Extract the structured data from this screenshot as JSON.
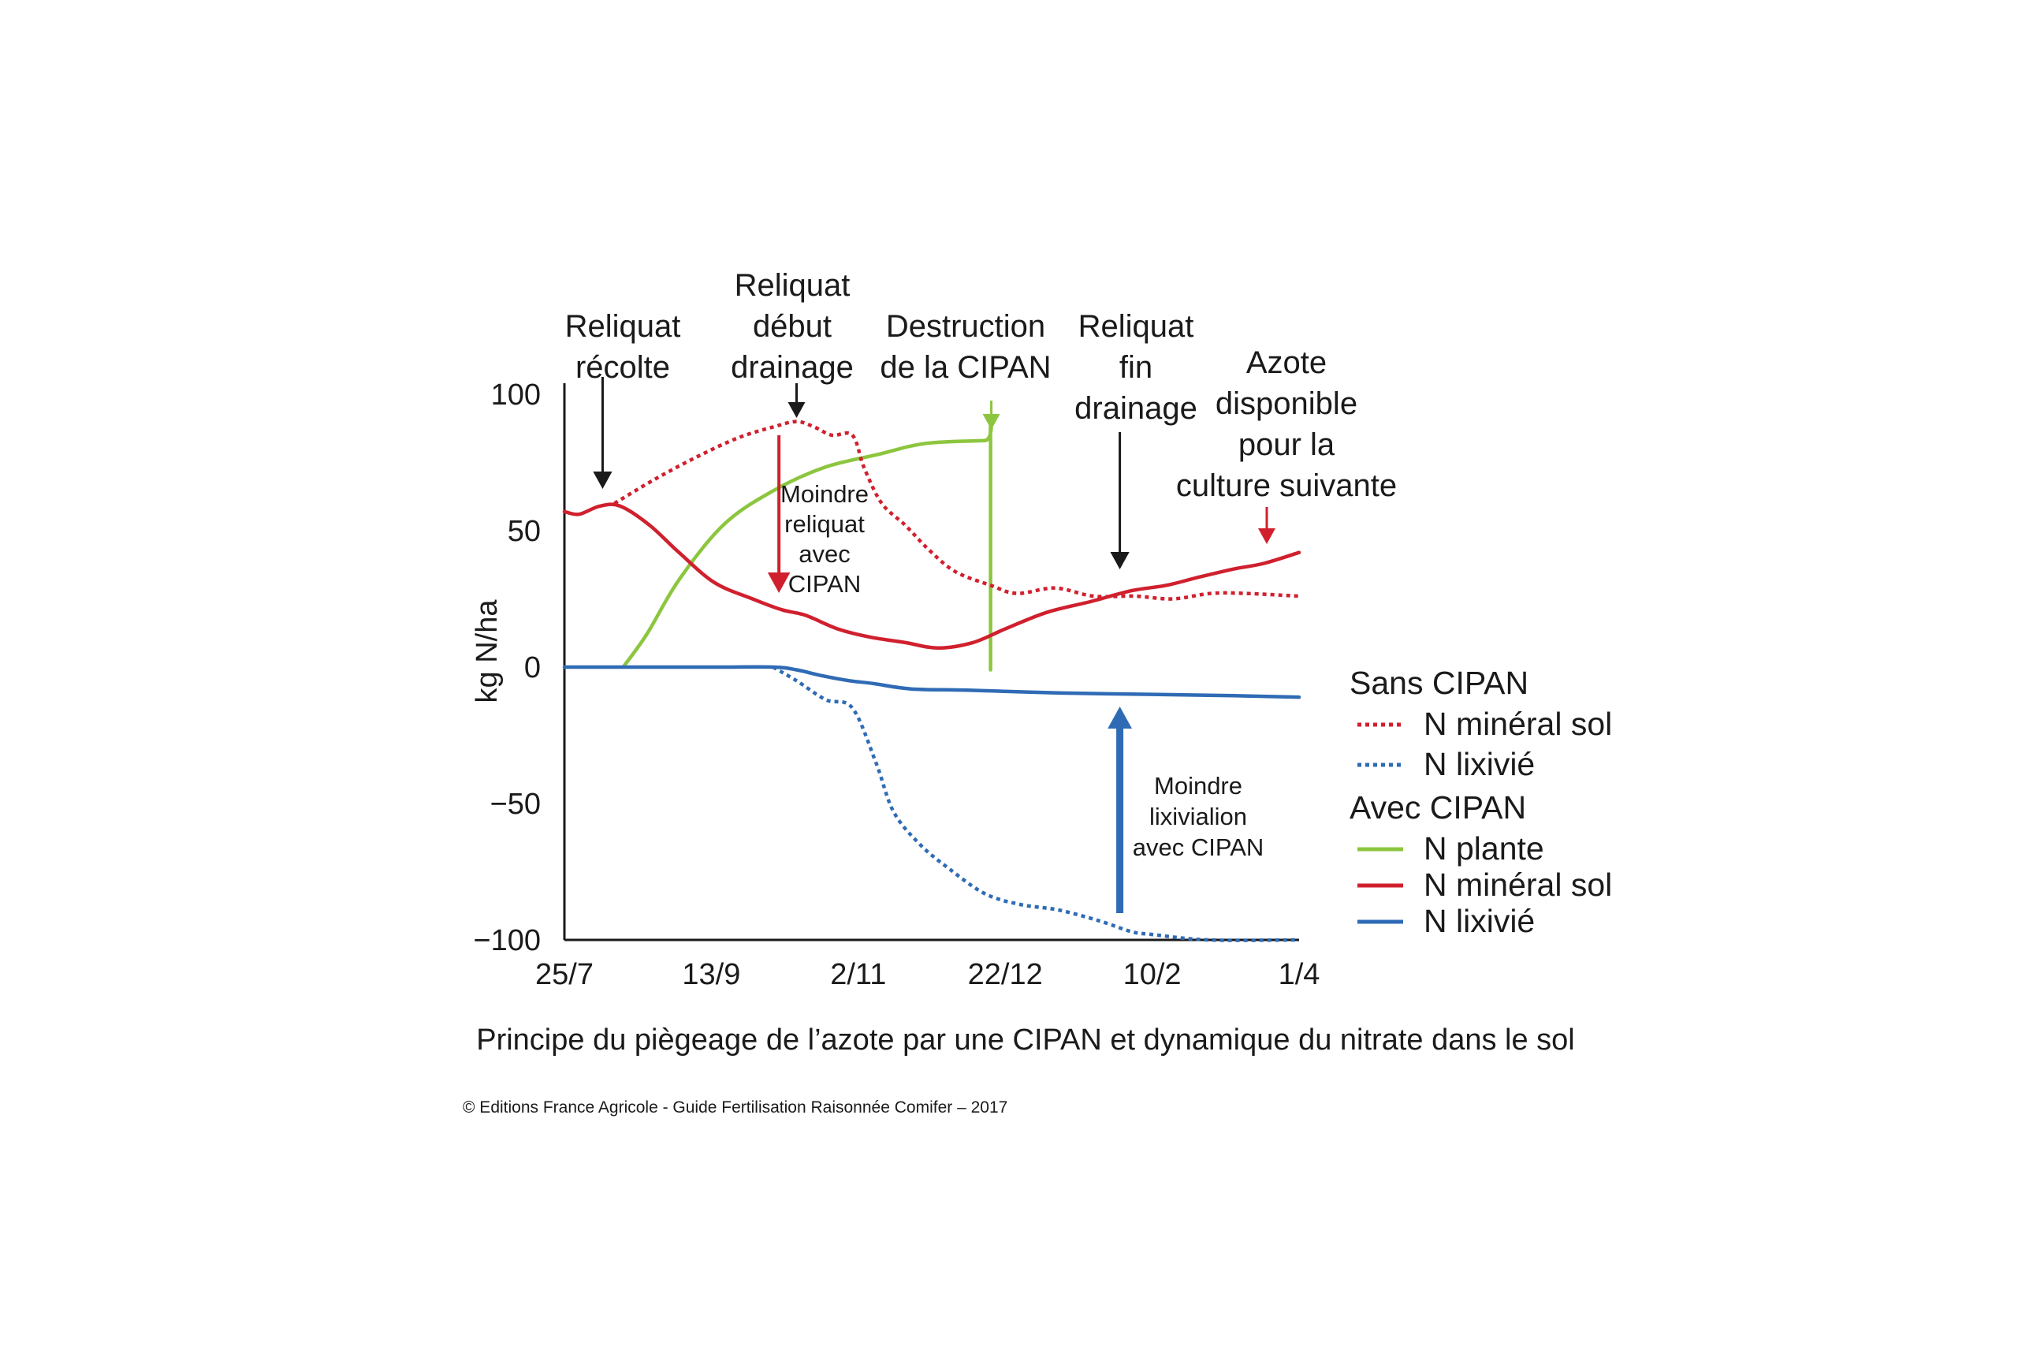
{
  "chart_data": {
    "type": "line",
    "title": "",
    "xlabel": "",
    "ylabel": "kg N/ha",
    "ylim": [
      -100,
      100
    ],
    "yticks": [
      100,
      50,
      0,
      -50,
      -100
    ],
    "ytick_labels": [
      "100",
      "50",
      "0",
      "−50",
      "−100"
    ],
    "xlim": [
      "2016-07-25",
      "2017-04-01"
    ],
    "xticks": [
      "2016-07-25",
      "2016-09-13",
      "2016-11-02",
      "2016-12-22",
      "2017-02-10",
      "2017-04-01"
    ],
    "xtick_labels": [
      "25/7",
      "13/9",
      "2/11",
      "22/12",
      "10/2",
      "1/4"
    ],
    "grid": false,
    "legend_position": "right",
    "colors": {
      "red": "#d0202e",
      "blue": "#2f6bb5",
      "green": "#8cc63e",
      "black": "#1a1a1a"
    },
    "legend": [
      {
        "group": "Sans CIPAN",
        "items": [
          {
            "label": "N minéral sol",
            "color": "#d0202e",
            "dashed": true
          },
          {
            "label": "N lixivié",
            "color": "#2f6bb5",
            "dashed": true
          }
        ]
      },
      {
        "group": "Avec CIPAN",
        "items": [
          {
            "label": "N plante",
            "color": "#8cc63e",
            "dashed": false
          },
          {
            "label": "N minéral sol",
            "color": "#d0202e",
            "dashed": false
          },
          {
            "label": "N lixivié",
            "color": "#2f6bb5",
            "dashed": false
          }
        ]
      }
    ],
    "series": [
      {
        "group": "Sans CIPAN",
        "name": "N minéral sol",
        "color": "#d0202e",
        "dashed": true,
        "x": [
          "2016-08-11",
          "2016-08-25",
          "2016-09-08",
          "2016-09-22",
          "2016-10-04",
          "2016-10-12",
          "2016-10-18",
          "2016-10-24",
          "2016-10-31",
          "2016-11-04",
          "2016-11-10",
          "2016-11-18",
          "2016-11-26",
          "2016-12-05",
          "2016-12-17",
          "2016-12-26",
          "2017-01-08",
          "2017-01-21",
          "2017-02-04",
          "2017-02-17",
          "2017-03-02",
          "2017-03-14",
          "2017-04-01"
        ],
        "y": [
          60,
          69,
          77,
          84,
          88,
          90,
          88,
          85,
          85,
          73,
          60,
          52,
          43,
          35,
          30,
          27,
          29,
          26,
          26,
          25,
          27,
          27,
          26
        ]
      },
      {
        "group": "Sans CIPAN",
        "name": "N lixivié",
        "color": "#2f6bb5",
        "dashed": true,
        "x": [
          "2016-10-04",
          "2016-10-12",
          "2016-10-22",
          "2016-10-31",
          "2016-11-08",
          "2016-11-14",
          "2016-11-23",
          "2016-12-03",
          "2016-12-15",
          "2016-12-27",
          "2017-01-09",
          "2017-01-23",
          "2017-02-03",
          "2017-02-10",
          "2017-03-01",
          "2017-04-01"
        ],
        "y": [
          0,
          -5,
          -12,
          -15,
          -35,
          -53,
          -65,
          -74,
          -83,
          -87,
          -89,
          -93,
          -97,
          -98,
          -100,
          -100
        ]
      },
      {
        "group": "Avec CIPAN",
        "name": "N plante",
        "color": "#8cc63e",
        "dashed": false,
        "x": [
          "2016-08-14",
          "2016-08-22",
          "2016-09-02",
          "2016-09-17",
          "2016-10-03",
          "2016-10-21",
          "2016-11-09",
          "2016-11-25",
          "2016-12-15",
          "2016-12-17",
          "2016-12-17"
        ],
        "y": [
          0,
          12,
          32,
          52,
          64,
          73,
          78,
          82,
          83,
          83,
          -1
        ]
      },
      {
        "group": "Avec CIPAN",
        "name": "N minéral sol",
        "color": "#d0202e",
        "dashed": false,
        "x": [
          "2016-07-25",
          "2016-07-30",
          "2016-08-06",
          "2016-08-13",
          "2016-08-23",
          "2016-09-02",
          "2016-09-14",
          "2016-09-27",
          "2016-10-07",
          "2016-10-15",
          "2016-10-26",
          "2016-11-06",
          "2016-11-18",
          "2016-11-29",
          "2016-12-11",
          "2016-12-22",
          "2017-01-05",
          "2017-01-20",
          "2017-02-03",
          "2017-02-15",
          "2017-02-26",
          "2017-03-10",
          "2017-03-20",
          "2017-04-01"
        ],
        "y": [
          57,
          56,
          59,
          59,
          52,
          42,
          31,
          25,
          21,
          19,
          14,
          11,
          9,
          7,
          9,
          14,
          20,
          24,
          28,
          30,
          33,
          36,
          38,
          42
        ]
      },
      {
        "group": "Avec CIPAN",
        "name": "N lixivié",
        "color": "#2f6bb5",
        "dashed": false,
        "x": [
          "2016-07-25",
          "2016-08-20",
          "2016-09-15",
          "2016-10-04",
          "2016-10-12",
          "2016-10-20",
          "2016-10-30",
          "2016-11-07",
          "2016-11-20",
          "2016-12-10",
          "2017-01-10",
          "2017-02-10",
          "2017-03-10",
          "2017-04-01"
        ],
        "y": [
          0,
          0,
          0,
          0,
          -1,
          -3,
          -5,
          -6,
          -8,
          -8.5,
          -9.5,
          -10,
          -10.5,
          -11
        ]
      }
    ],
    "annotations": [
      {
        "id": "reliquat-recolte",
        "lines": [
          "Reliquat",
          "récolte"
        ],
        "x": "2016-08-07",
        "arrow_color": "#1a1a1a"
      },
      {
        "id": "reliquat-debut-drainage",
        "lines": [
          "Reliquat",
          "début",
          "drainage"
        ],
        "x": "2016-10-12",
        "arrow_color": "#1a1a1a"
      },
      {
        "id": "destruction-cipan",
        "lines": [
          "Destruction",
          "de la CIPAN"
        ],
        "x": "2016-12-17",
        "arrow_color": "#8cc63e"
      },
      {
        "id": "reliquat-fin-drainage",
        "lines": [
          "Reliquat",
          "fin",
          "drainage"
        ],
        "x": "2017-01-30",
        "arrow_color": "#1a1a1a"
      },
      {
        "id": "azote-disponible",
        "lines": [
          "Azote",
          "disponible",
          "pour la",
          "culture suivante"
        ],
        "x": "2017-03-21",
        "arrow_color": "#d0202e"
      },
      {
        "id": "moindre-reliquat",
        "lines": [
          "Moindre",
          "reliquat",
          "avec",
          "CIPAN"
        ],
        "x": "2016-10-06",
        "arrow_color": "#d0202e"
      },
      {
        "id": "moindre-lixiviation",
        "lines": [
          "Moindre",
          "lixivialion",
          "avec CIPAN"
        ],
        "x": "2017-01-30",
        "arrow_color": "#2f6bb5"
      }
    ]
  },
  "caption": "Principe du piègeage de l’azote par une CIPAN et dynamique du nitrate dans le sol",
  "credit": "© Editions France Agricole - Guide Fertilisation Raisonnée Comifer – 2017"
}
